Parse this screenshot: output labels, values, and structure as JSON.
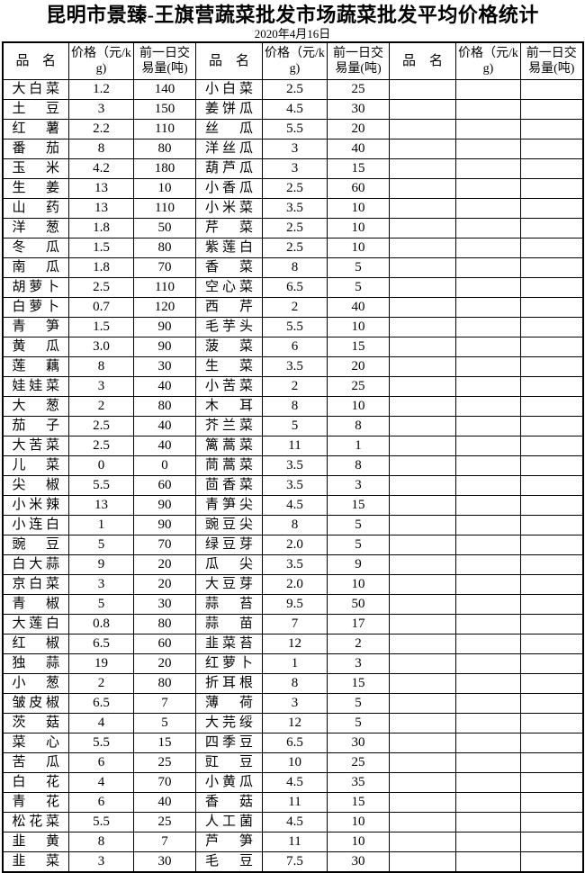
{
  "page": {
    "title": "昆明市景臻-王旗营蔬菜批发市场蔬菜批发平均价格统计",
    "date": "2020年4月16日"
  },
  "table": {
    "headers": {
      "name": "品名",
      "price": "价格（元/kg)",
      "volume": "前一日交易量(吨)"
    },
    "sections": [
      {
        "rows": [
          {
            "name": "大白菜",
            "price": "1.2",
            "volume": "140"
          },
          {
            "name": "土豆",
            "price": "3",
            "volume": "150"
          },
          {
            "name": "红薯",
            "price": "2.2",
            "volume": "110"
          },
          {
            "name": "番茄",
            "price": "8",
            "volume": "80"
          },
          {
            "name": "玉米",
            "price": "4.2",
            "volume": "180"
          },
          {
            "name": "生姜",
            "price": "13",
            "volume": "10"
          },
          {
            "name": "山药",
            "price": "13",
            "volume": "110"
          },
          {
            "name": "洋葱",
            "price": "1.8",
            "volume": "50"
          },
          {
            "name": "冬瓜",
            "price": "1.5",
            "volume": "80"
          },
          {
            "name": "南瓜",
            "price": "1.8",
            "volume": "70"
          },
          {
            "name": "胡萝卜",
            "price": "2.5",
            "volume": "110"
          },
          {
            "name": "白萝卜",
            "price": "0.7",
            "volume": "120"
          },
          {
            "name": "青笋",
            "price": "1.5",
            "volume": "90"
          },
          {
            "name": "黄瓜",
            "price": "3.0",
            "volume": "90"
          },
          {
            "name": "莲藕",
            "price": "8",
            "volume": "30"
          },
          {
            "name": "娃娃菜",
            "price": "3",
            "volume": "40"
          },
          {
            "name": "大葱",
            "price": "2",
            "volume": "80"
          },
          {
            "name": "茄子",
            "price": "2.5",
            "volume": "40"
          },
          {
            "name": "大苦菜",
            "price": "2.5",
            "volume": "40"
          },
          {
            "name": "儿菜",
            "price": "0",
            "volume": "0"
          },
          {
            "name": "尖椒",
            "price": "5.5",
            "volume": "60"
          },
          {
            "name": "小米辣",
            "price": "13",
            "volume": "90"
          },
          {
            "name": "小连白",
            "price": "1",
            "volume": "90"
          },
          {
            "name": "豌豆",
            "price": "5",
            "volume": "70"
          },
          {
            "name": "白大蒜",
            "price": "9",
            "volume": "20"
          },
          {
            "name": "京白菜",
            "price": "3",
            "volume": "20"
          },
          {
            "name": "青椒",
            "price": "5",
            "volume": "30"
          },
          {
            "name": "大莲白",
            "price": "0.8",
            "volume": "80"
          },
          {
            "name": "红椒",
            "price": "6.5",
            "volume": "60"
          },
          {
            "name": "独蒜",
            "price": "19",
            "volume": "20"
          },
          {
            "name": "小葱",
            "price": "2",
            "volume": "80"
          },
          {
            "name": "皱皮椒",
            "price": "6.5",
            "volume": "7"
          },
          {
            "name": "茨菇",
            "price": "4",
            "volume": "5"
          },
          {
            "name": "菜心",
            "price": "5.5",
            "volume": "15"
          },
          {
            "name": "苦瓜",
            "price": "6",
            "volume": "25"
          },
          {
            "name": "白花",
            "price": "4",
            "volume": "70"
          },
          {
            "name": "青花",
            "price": "6",
            "volume": "40"
          },
          {
            "name": "松花菜",
            "price": "5.5",
            "volume": "25"
          },
          {
            "name": "韭黄",
            "price": "8",
            "volume": "7"
          },
          {
            "name": "韭菜",
            "price": "3",
            "volume": "30"
          }
        ]
      },
      {
        "rows": [
          {
            "name": "小白菜",
            "price": "2.5",
            "volume": "25"
          },
          {
            "name": "姜饼瓜",
            "price": "4.5",
            "volume": "30"
          },
          {
            "name": "丝瓜",
            "price": "5.5",
            "volume": "20"
          },
          {
            "name": "洋丝瓜",
            "price": "3",
            "volume": "40"
          },
          {
            "name": "葫芦瓜",
            "price": "3",
            "volume": "15"
          },
          {
            "name": "小香瓜",
            "price": "2.5",
            "volume": "60"
          },
          {
            "name": "小米菜",
            "price": "3.5",
            "volume": "10"
          },
          {
            "name": "芹菜",
            "price": "2.5",
            "volume": "10"
          },
          {
            "name": "紫莲白",
            "price": "2.5",
            "volume": "10"
          },
          {
            "name": "香菜",
            "price": "8",
            "volume": "5"
          },
          {
            "name": "空心菜",
            "price": "6.5",
            "volume": "5"
          },
          {
            "name": "西芹",
            "price": "2",
            "volume": "40"
          },
          {
            "name": "毛芋头",
            "price": "5.5",
            "volume": "10"
          },
          {
            "name": "菠菜",
            "price": "6",
            "volume": "15"
          },
          {
            "name": "生菜",
            "price": "3.5",
            "volume": "20"
          },
          {
            "name": "小苦菜",
            "price": "2",
            "volume": "25"
          },
          {
            "name": "木耳",
            "price": "8",
            "volume": "10"
          },
          {
            "name": "芥兰菜",
            "price": "5",
            "volume": "8"
          },
          {
            "name": "篱蒿菜",
            "price": "11",
            "volume": "1"
          },
          {
            "name": "茼蒿菜",
            "price": "3.5",
            "volume": "8"
          },
          {
            "name": "茴香菜",
            "price": "3.5",
            "volume": "3"
          },
          {
            "name": "青笋尖",
            "price": "4.5",
            "volume": "15"
          },
          {
            "name": "豌豆尖",
            "price": "8",
            "volume": "5"
          },
          {
            "name": "绿豆芽",
            "price": "2.0",
            "volume": "5"
          },
          {
            "name": "瓜尖",
            "price": "3.5",
            "volume": "9"
          },
          {
            "name": "大豆芽",
            "price": "2.0",
            "volume": "10"
          },
          {
            "name": "蒜苔",
            "price": "9.5",
            "volume": "50"
          },
          {
            "name": "蒜苗",
            "price": "7",
            "volume": "17"
          },
          {
            "name": "韭菜苔",
            "price": "12",
            "volume": "2"
          },
          {
            "name": "红萝卜",
            "price": "1",
            "volume": "3"
          },
          {
            "name": "折耳根",
            "price": "8",
            "volume": "15"
          },
          {
            "name": "薄荷",
            "price": "3",
            "volume": "5"
          },
          {
            "name": "大芫绥",
            "price": "12",
            "volume": "5"
          },
          {
            "name": "四季豆",
            "price": "6.5",
            "volume": "30"
          },
          {
            "name": "豇豆",
            "price": "10",
            "volume": "25"
          },
          {
            "name": "小黄瓜",
            "price": "4.5",
            "volume": "35"
          },
          {
            "name": "香菇",
            "price": "11",
            "volume": "15"
          },
          {
            "name": "人工菌",
            "price": "4.5",
            "volume": "10"
          },
          {
            "name": "芦笋",
            "price": "11",
            "volume": "10"
          },
          {
            "name": "毛豆",
            "price": "7.5",
            "volume": "30"
          }
        ]
      },
      {
        "rows": []
      }
    ]
  }
}
